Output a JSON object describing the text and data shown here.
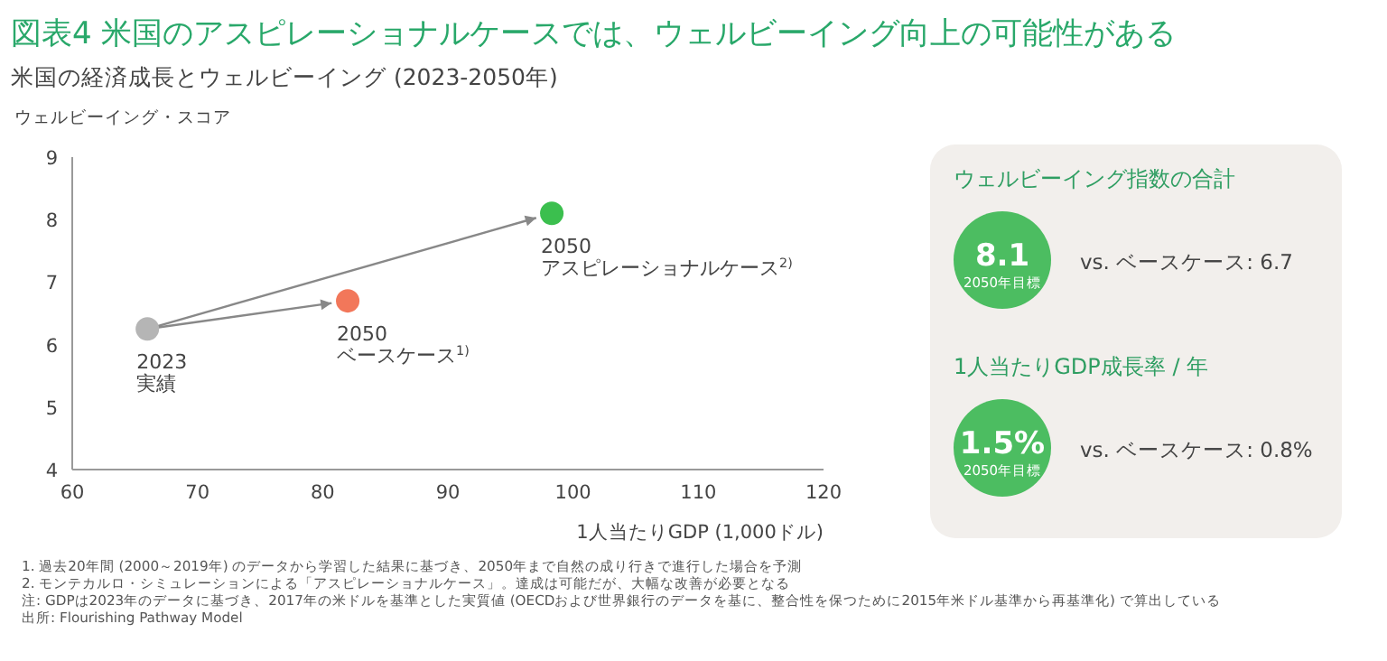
{
  "chart_data": [
    {
      "type": "scatter",
      "title": "図表4  米国のアスピレーショナルケースでは、ウェルビーイング向上の可能性がある",
      "subtitle": "米国の経済成長とウェルビーイング (2023-2050年)",
      "ylabel": "ウェルビーイング・スコア",
      "xlabel": "1人当たりGDP (1,000ドル)",
      "x": [
        66,
        82,
        98.3
      ],
      "values": [
        6.25,
        6.7,
        8.1
      ],
      "colors": [
        "#b5b5b5",
        "#f2775a",
        "#3bbf4e"
      ],
      "xlim": [
        60,
        120
      ],
      "xticks": [
        60,
        70,
        80,
        90,
        100,
        110,
        120
      ],
      "ylim": [
        4,
        9
      ],
      "yticks": [
        4,
        5,
        6,
        7,
        8,
        9
      ],
      "annotations": [
        {
          "text": "2023\n実績",
          "x": 66,
          "y": 6.25
        },
        {
          "text": "2050\nベースケース$^{1)}$",
          "x": 82,
          "y": 6.7
        },
        {
          "text": "2050\nアスピレーショナルケース$^{2)}$",
          "x": 98.3,
          "y": 8.1
        },
        "1.    過去20年間 (2000～2019年) のデータから学習した結果に基づき、2050年まで自然の成り行きで進行した場合を予測",
        "2.    モンテカルロ・シミュレーションによる「アスピレーショナルケース」。達成は可能だが、大幅な改善が必要となる",
        "注:   GDPは2023年のデータに基づき、2017年の米ドルを基準とした実質値 (OECDおよび世界銀行のデータを基に、整合性を保つために2015年米ドル基準から再基準化) で算出している",
        "出所: Flourishing Pathway Model"
      ]
    },
    {
      "type": "other",
      "annotations": [
        "ウェルビーイング指数の合計",
        "8.1",
        "2050年目標",
        "vs. ベースケース: 6.7",
        "1人当たりGDP成長率 / 年",
        "1.5%",
        "2050年目標",
        "vs. ベースケース: 0.8%"
      ]
    }
  ]
}
